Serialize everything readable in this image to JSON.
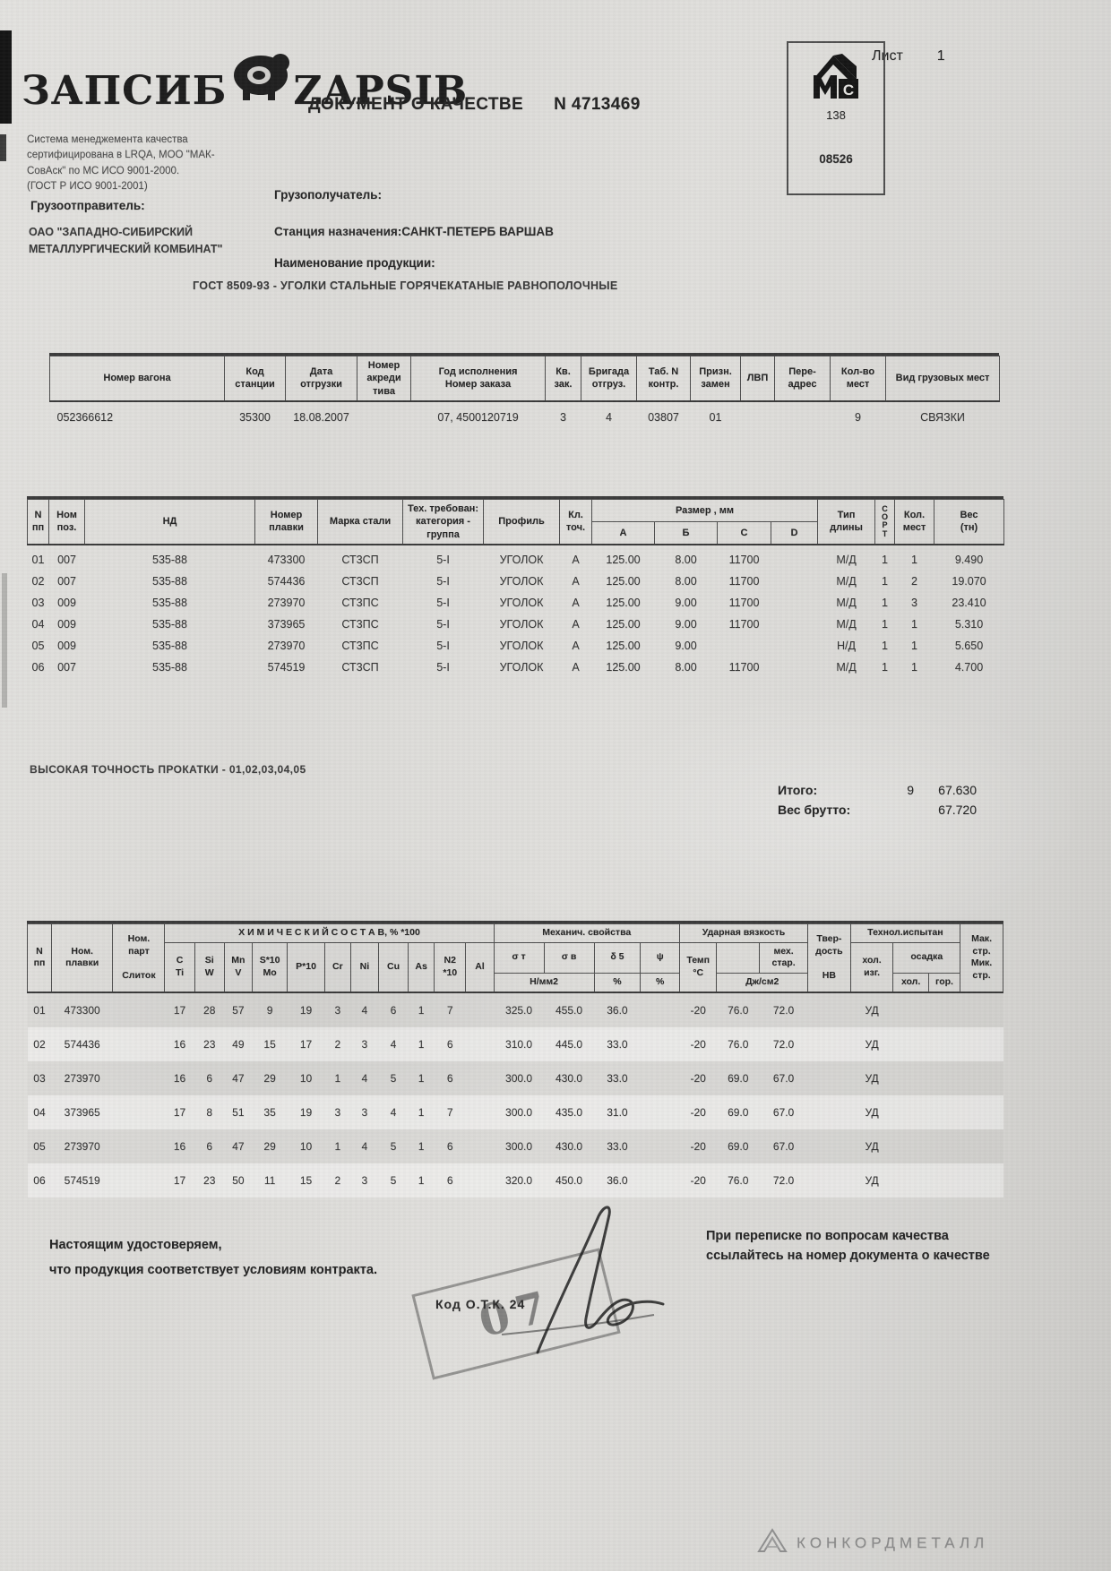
{
  "page": {
    "sheet_label": "Лист",
    "sheet_number": "1"
  },
  "header": {
    "logo_left": "ЗАПСИБ",
    "logo_right": "ZAPSIB",
    "cert_text": "Система менеджемента качества\nсертифицирована в LRQA, МОО \"МАК-\nСовАск\" по МС ИСО 9001-2000.\n(ГОСТ Р ИСО 9001-2001)",
    "title": "ДОКУМЕНТ О КАЧЕСТВЕ",
    "doc_number": "N 4713469",
    "stamp": {
      "logo": "МС",
      "code1": "138",
      "code2": "08526"
    }
  },
  "parties": {
    "consignor_label": "Грузоотправитель:",
    "consignor": "ОАО \"ЗАПАДНО-СИБИРСКИЙ\nМЕТАЛЛУРГИЧЕСКИЙ КОМБИНАТ\"",
    "consignee_label": "Грузополучатель:",
    "destination_label": "Станция назначения:",
    "destination": "САНКТ-ПЕТЕРБ ВАРШАВ",
    "product_label": "Наименование   продукции:",
    "product": "ГОСТ 8509-93  -  УГОЛКИ СТАЛЬНЫЕ ГОРЯЧЕКАТАНЫЕ РАВНОПОЛОЧНЫЕ"
  },
  "wagon_table": {
    "headers": [
      "Номер вагона",
      "Код\nстанции",
      "Дата\nотгрузки",
      "Номер\nакреди\nтива",
      "Год исполнения\nНомер заказа",
      "Кв.\nзак.",
      "Бригада\nотгруз.",
      "Таб. N\nконтр.",
      "Призн.\nзамен",
      "ЛВП",
      "Пере-\nадрес",
      "Кол-во\nмест",
      "Вид  грузовых мест"
    ],
    "rows": [
      [
        "052366612",
        "35300",
        "18.08.2007",
        "",
        "07, 4500120719",
        "3",
        "4",
        "03807",
        "01",
        "",
        "",
        "9",
        "СВЯЗКИ"
      ]
    ]
  },
  "product_table": {
    "col_n": "N\nпп",
    "col_pos": "Ном\nпоз.",
    "col_nd": "НД",
    "col_heat": "Номер\nплавки",
    "col_grade": "Марка стали",
    "col_req": "Тех. требован:\nкатегория -\nгруппа",
    "col_profile": "Профиль",
    "col_acc": "Кл.\nточ.",
    "size_group": "Размер , мм",
    "size_cols": [
      "А",
      "Б",
      "С",
      "D"
    ],
    "col_lentype": "Тип\nдлины",
    "col_sort": "С\nО\nР\nТ",
    "col_places": "Кол.\nмест",
    "col_weight": "Вес\n(тн)",
    "rows": [
      [
        "01",
        "007",
        "535-88",
        "473300",
        "СТ3СП",
        "5-I",
        "УГОЛОК",
        "А",
        "125.00",
        "8.00",
        "11700",
        "",
        "М/Д",
        "1",
        "1",
        "9.490"
      ],
      [
        "02",
        "007",
        "535-88",
        "574436",
        "СТ3СП",
        "5-I",
        "УГОЛОК",
        "А",
        "125.00",
        "8.00",
        "11700",
        "",
        "М/Д",
        "1",
        "2",
        "19.070"
      ],
      [
        "03",
        "009",
        "535-88",
        "273970",
        "СТ3ПС",
        "5-I",
        "УГОЛОК",
        "А",
        "125.00",
        "9.00",
        "11700",
        "",
        "М/Д",
        "1",
        "3",
        "23.410"
      ],
      [
        "04",
        "009",
        "535-88",
        "373965",
        "СТ3ПС",
        "5-I",
        "УГОЛОК",
        "А",
        "125.00",
        "9.00",
        "11700",
        "",
        "М/Д",
        "1",
        "1",
        "5.310"
      ],
      [
        "05",
        "009",
        "535-88",
        "273970",
        "СТ3ПС",
        "5-I",
        "УГОЛОК",
        "А",
        "125.00",
        "9.00",
        "",
        "",
        "Н/Д",
        "1",
        "1",
        "5.650"
      ],
      [
        "06",
        "007",
        "535-88",
        "574519",
        "СТ3СП",
        "5-I",
        "УГОЛОК",
        "А",
        "125.00",
        "8.00",
        "11700",
        "",
        "М/Д",
        "1",
        "1",
        "4.700"
      ]
    ]
  },
  "totals": {
    "total_label": "Итого:",
    "total_places": "9",
    "total_weight": "67.630",
    "gross_label": "Вес брутто:",
    "gross_weight": "67.720"
  },
  "rolling_note": "ВЫСОКАЯ ТОЧНОСТЬ ПРОКАТКИ   - 01,02,03,04,05",
  "chem_table": {
    "col_n": "N\nпп",
    "col_heat": "Ном.\nплавки",
    "col_part": "Ном.\nпарт\n\nСлиток",
    "chem_group": "Х И М И Ч Е С К И Й  С О С Т А В, % *100",
    "elements": [
      "C\nTi",
      "Si\nW",
      "Mn\nV",
      "S*10\nMo",
      "P*10",
      "Cr",
      "Ni",
      "Cu",
      "As",
      "N2\n*10",
      "Al"
    ],
    "mech_group": "Механич. свойства",
    "mech_sigma_t": "σ т",
    "mech_sigma_v": "σ в",
    "mech_delta": "δ 5",
    "mech_psi": "ψ",
    "mech_unit_sigma": "Н/мм2",
    "mech_unit_delta": "%",
    "mech_unit_psi": "%",
    "impact_group": "Ударная вязкость",
    "impact_temp": "Темп\n°С",
    "impact_blank": "",
    "impact_meh": "мех.\nстар.",
    "impact_unit": "Дж/см2",
    "hardness": "Твер-\nдость\n\nНВ",
    "tech_group": "Технол.испытан",
    "tech_cold": "хол.\nизг.",
    "tech_osadka": "осадка",
    "tech_sub_cold": "хол.",
    "tech_sub_hot": "гор.",
    "structure": "Мак.\nстр.\nМик.\nстр.",
    "rows": [
      [
        "01",
        "473300",
        "",
        "17",
        "28",
        "57",
        "9",
        "19",
        "3",
        "4",
        "6",
        "1",
        "7",
        "",
        "325.0",
        "455.0",
        "36.0",
        "",
        "-20",
        "76.0",
        "72.0",
        "",
        "УД",
        "",
        "",
        ""
      ],
      [
        "02",
        "574436",
        "",
        "16",
        "23",
        "49",
        "15",
        "17",
        "2",
        "3",
        "4",
        "1",
        "6",
        "",
        "310.0",
        "445.0",
        "33.0",
        "",
        "-20",
        "76.0",
        "72.0",
        "",
        "УД",
        "",
        "",
        ""
      ],
      [
        "03",
        "273970",
        "",
        "16",
        "6",
        "47",
        "29",
        "10",
        "1",
        "4",
        "5",
        "1",
        "6",
        "",
        "300.0",
        "430.0",
        "33.0",
        "",
        "-20",
        "69.0",
        "67.0",
        "",
        "УД",
        "",
        "",
        ""
      ],
      [
        "04",
        "373965",
        "",
        "17",
        "8",
        "51",
        "35",
        "19",
        "3",
        "3",
        "4",
        "1",
        "7",
        "",
        "300.0",
        "435.0",
        "31.0",
        "",
        "-20",
        "69.0",
        "67.0",
        "",
        "УД",
        "",
        "",
        ""
      ],
      [
        "05",
        "273970",
        "",
        "16",
        "6",
        "47",
        "29",
        "10",
        "1",
        "4",
        "5",
        "1",
        "6",
        "",
        "300.0",
        "430.0",
        "33.0",
        "",
        "-20",
        "69.0",
        "67.0",
        "",
        "УД",
        "",
        "",
        ""
      ],
      [
        "06",
        "574519",
        "",
        "17",
        "23",
        "50",
        "11",
        "15",
        "2",
        "3",
        "5",
        "1",
        "6",
        "",
        "320.0",
        "450.0",
        "36.0",
        "",
        "-20",
        "76.0",
        "72.0",
        "",
        "УД",
        "",
        "",
        ""
      ]
    ]
  },
  "footer": {
    "certify_text": "Настоящим удостоверяем,\nчто продукция соответствует условиям контракта.",
    "correspondence_text": "При переписке по вопросам качества ссылайтесь на номер документа о качестве",
    "otk_label": "Код  О.Т.К. 24",
    "ghost_stamp_text": "07",
    "brand": "КОНКОРДМЕТАЛЛ"
  }
}
